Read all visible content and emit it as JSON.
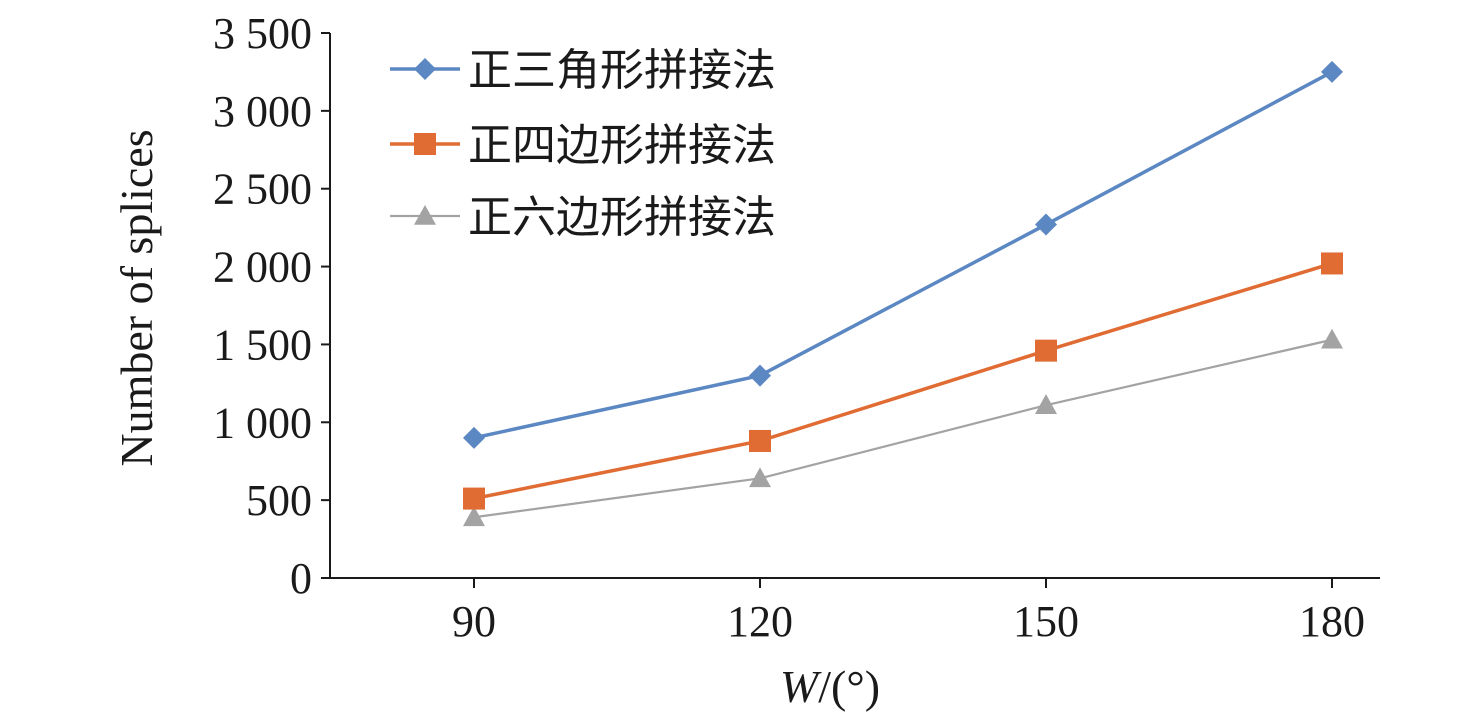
{
  "chart_data": {
    "type": "line",
    "x": [
      90,
      120,
      150,
      180
    ],
    "xlabel_italic": "W",
    "xlabel_rest": "/(°)",
    "ylabel": "Number of splices",
    "ylim": [
      0,
      3500
    ],
    "yticks": [
      0,
      500,
      1000,
      1500,
      2000,
      2500,
      3000,
      3500
    ],
    "ytick_labels": [
      "0",
      "500",
      "1 000",
      "1 500",
      "2 000",
      "2 500",
      "3 000",
      "3 500"
    ],
    "xtick_labels": [
      "90",
      "120",
      "150",
      "180"
    ],
    "grid": false,
    "legend_position": "top-left",
    "series": [
      {
        "name": "正三角形拼接法",
        "values": [
          900,
          1300,
          2270,
          3250
        ],
        "color": "#5b87c2",
        "marker": "diamond",
        "line_width": 3.5
      },
      {
        "name": "正四边形拼接法",
        "values": [
          510,
          880,
          1460,
          2020
        ],
        "color": "#e06b33",
        "marker": "square",
        "line_width": 3.5
      },
      {
        "name": "正六边形拼接法",
        "values": [
          390,
          640,
          1110,
          1530
        ],
        "color": "#a3a3a3",
        "marker": "triangle",
        "line_width": 2.2
      }
    ]
  }
}
